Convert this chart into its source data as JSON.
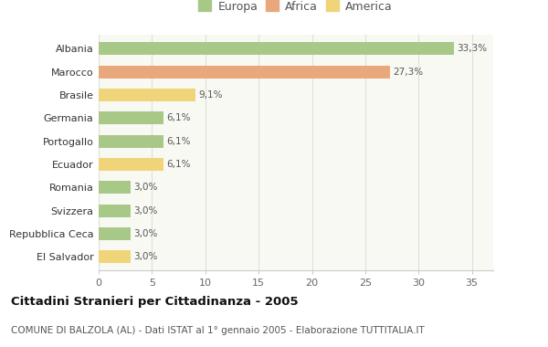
{
  "categories": [
    "Albania",
    "Marocco",
    "Brasile",
    "Germania",
    "Portogallo",
    "Ecuador",
    "Romania",
    "Svizzera",
    "Repubblica Ceca",
    "El Salvador"
  ],
  "values": [
    33.3,
    27.3,
    9.1,
    6.1,
    6.1,
    6.1,
    3.0,
    3.0,
    3.0,
    3.0
  ],
  "labels": [
    "33,3%",
    "27,3%",
    "9,1%",
    "6,1%",
    "6,1%",
    "6,1%",
    "3,0%",
    "3,0%",
    "3,0%",
    "3,0%"
  ],
  "colors": [
    "#a8c888",
    "#e8a87c",
    "#f0d47a",
    "#a8c888",
    "#a8c888",
    "#f0d47a",
    "#a8c888",
    "#a8c888",
    "#a8c888",
    "#f0d47a"
  ],
  "legend_labels": [
    "Europa",
    "Africa",
    "America"
  ],
  "legend_colors": [
    "#a8c888",
    "#e8a87c",
    "#f0d47a"
  ],
  "title": "Cittadini Stranieri per Cittadinanza - 2005",
  "subtitle": "COMUNE DI BALZOLA (AL) - Dati ISTAT al 1° gennaio 2005 - Elaborazione TUTTITALIA.IT",
  "xlim": [
    0,
    37
  ],
  "xticks": [
    0,
    5,
    10,
    15,
    20,
    25,
    30,
    35
  ],
  "bg_color": "#ffffff",
  "plot_bg_color": "#f9f9f4",
  "grid_color": "#e0e0d8"
}
